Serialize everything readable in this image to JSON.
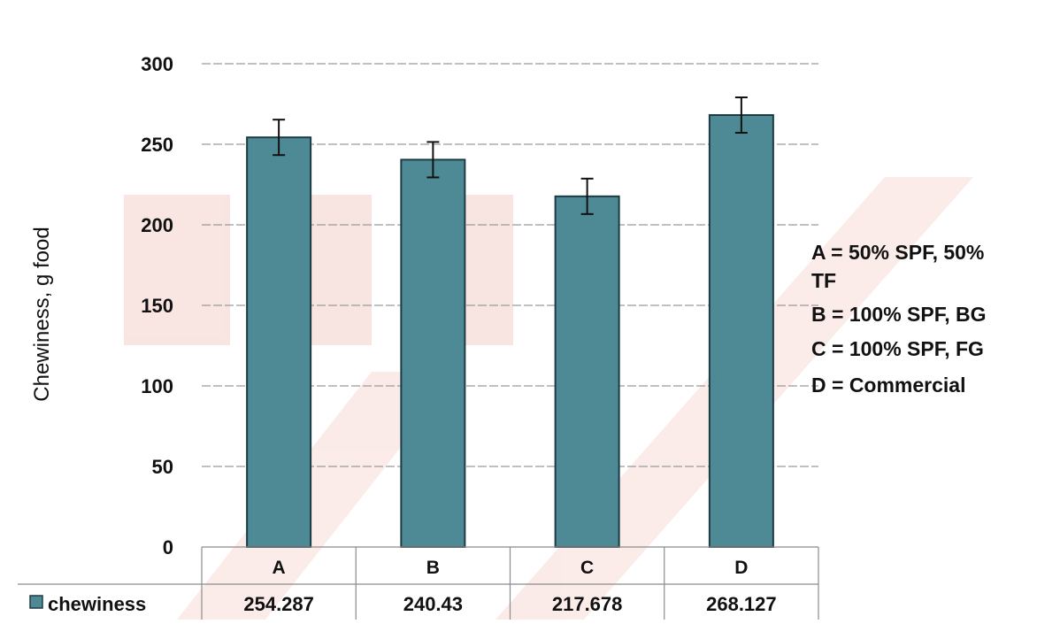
{
  "chart_data": {
    "type": "bar",
    "categories": [
      "A",
      "B",
      "C",
      "D"
    ],
    "series": [
      {
        "name": "chewiness",
        "values": [
          254.287,
          240.43,
          217.678,
          268.127
        ],
        "errors": [
          11,
          11,
          11,
          11
        ]
      }
    ],
    "ylabel": "Chewiness, g food",
    "ylim": [
      0,
      300
    ],
    "yticks": [
      "0",
      "50",
      "100",
      "150",
      "200",
      "250",
      "300"
    ],
    "grid": true,
    "data_table": true,
    "legend": "data-table-row"
  },
  "value_labels": [
    "254.287",
    "240.43",
    "217.678",
    "268.127"
  ],
  "notes": [
    "A = 50% SPF, 50%",
    "TF",
    "B = 100% SPF, BG",
    "C = 100% SPF, FG",
    "D = Commercial"
  ],
  "colors": {
    "bar": "#4d8a96",
    "bar_stroke": "#1c3b43",
    "gridline": "#9a9a9a",
    "table_border": "#8c8c8c",
    "watermark": "#f2c9c4"
  }
}
